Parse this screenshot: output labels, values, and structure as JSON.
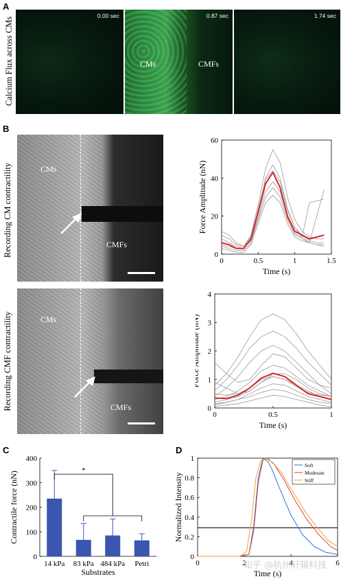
{
  "panels": {
    "A": {
      "letter": "A",
      "row_label": "Calcium Flux across CMs",
      "frames": [
        {
          "time": "0.00 sec",
          "labels": []
        },
        {
          "time": "0.87 sec",
          "labels": [
            "CMs",
            "CMFs"
          ]
        },
        {
          "time": "1.74 sec",
          "labels": []
        }
      ],
      "colors": {
        "background": "#05140b",
        "signal": "#3fbf5a"
      }
    },
    "B": {
      "letter": "B",
      "top_row_label": "Recording CM contractility",
      "bottom_row_label": "Recording CMF contractility",
      "top_image": {
        "left_label": "CMs",
        "right_label": "CMFs"
      },
      "bottom_image": {
        "left_label": "CMs",
        "right_label": "CMFs"
      }
    },
    "C": {
      "letter": "C",
      "significance": "*"
    },
    "D": {
      "letter": "D"
    }
  },
  "chart_data": [
    {
      "id": "B-top",
      "type": "line",
      "xlabel": "Time (s)",
      "ylabel": "Force Amplitude (nN)",
      "xlim": [
        0,
        1.5
      ],
      "ylim": [
        0,
        60
      ],
      "xticks": [
        "0",
        "0.5",
        "1",
        "1.5"
      ],
      "yticks": [
        "0",
        "20",
        "40",
        "60"
      ],
      "mean_color": "#d62728",
      "trace_color": "#999999",
      "mean": {
        "x": [
          0,
          0.1,
          0.2,
          0.3,
          0.4,
          0.5,
          0.6,
          0.7,
          0.8,
          0.9,
          1.0,
          1.1,
          1.2,
          1.3,
          1.4
        ],
        "y": [
          6,
          5,
          3,
          3,
          8,
          22,
          37,
          43,
          35,
          20,
          12,
          10,
          8,
          9,
          10
        ]
      },
      "traces": [
        {
          "x": [
            0,
            0.1,
            0.2,
            0.3,
            0.4,
            0.5,
            0.6,
            0.7,
            0.8,
            0.9,
            1.0,
            1.1,
            1.2,
            1.3,
            1.4
          ],
          "y": [
            10,
            8,
            5,
            4,
            10,
            26,
            45,
            55,
            48,
            30,
            18,
            12,
            9,
            8,
            8
          ]
        },
        {
          "x": [
            0,
            0.1,
            0.2,
            0.3,
            0.4,
            0.5,
            0.6,
            0.7,
            0.8,
            0.9,
            1.0,
            1.1,
            1.2,
            1.3,
            1.4
          ],
          "y": [
            4,
            3,
            2,
            2,
            6,
            18,
            30,
            35,
            30,
            18,
            10,
            9,
            27,
            28,
            29
          ]
        },
        {
          "x": [
            0,
            0.1,
            0.2,
            0.3,
            0.4,
            0.5,
            0.6,
            0.7,
            0.8,
            0.9,
            1.0,
            1.1,
            1.2,
            1.3,
            1.4
          ],
          "y": [
            8,
            6,
            4,
            3,
            8,
            22,
            40,
            47,
            40,
            24,
            14,
            9,
            6,
            5,
            5
          ]
        },
        {
          "x": [
            0,
            0.1,
            0.2,
            0.3,
            0.4,
            0.5,
            0.6,
            0.7,
            0.8,
            0.9,
            1.0,
            1.1,
            1.2,
            1.3,
            1.4
          ],
          "y": [
            3,
            2,
            1,
            1,
            5,
            16,
            27,
            31,
            27,
            16,
            9,
            7,
            6,
            20,
            34
          ]
        },
        {
          "x": [
            0,
            0.1,
            0.2,
            0.3,
            0.4,
            0.5,
            0.6,
            0.7,
            0.8,
            0.9,
            1.0,
            1.1,
            1.2,
            1.3,
            1.4
          ],
          "y": [
            12,
            10,
            6,
            4,
            9,
            24,
            39,
            44,
            38,
            23,
            14,
            10,
            7,
            6,
            6
          ]
        },
        {
          "x": [
            0,
            0.1,
            0.2,
            0.3,
            0.4,
            0.5,
            0.6,
            0.7,
            0.8,
            0.9,
            1.0,
            1.1,
            1.2,
            1.3,
            1.4
          ],
          "y": [
            5,
            4,
            3,
            3,
            7,
            19,
            33,
            38,
            33,
            19,
            11,
            8,
            6,
            5,
            4
          ]
        }
      ]
    },
    {
      "id": "B-bottom",
      "type": "line",
      "xlabel": "Time (s)",
      "ylabel": "Force Amplitude (nN)",
      "xlim": [
        0,
        1
      ],
      "ylim": [
        0,
        4
      ],
      "xticks": [
        "0",
        "0.5",
        "1"
      ],
      "yticks": [
        "0",
        "1",
        "2",
        "3",
        "4"
      ],
      "mean_color": "#d62728",
      "trace_color": "#999999",
      "mean": {
        "x": [
          0,
          0.1,
          0.2,
          0.3,
          0.4,
          0.5,
          0.6,
          0.7,
          0.8,
          0.9,
          1.0
        ],
        "y": [
          0.35,
          0.33,
          0.45,
          0.7,
          1.05,
          1.22,
          1.1,
          0.8,
          0.5,
          0.4,
          0.3
        ]
      },
      "traces": [
        {
          "x": [
            0,
            0.1,
            0.2,
            0.3,
            0.4,
            0.5,
            0.6,
            0.7,
            0.8,
            0.9,
            1.0
          ],
          "y": [
            0.8,
            1.2,
            1.8,
            2.5,
            3.1,
            3.3,
            3.1,
            2.6,
            2.0,
            1.5,
            1.0
          ]
        },
        {
          "x": [
            0,
            0.1,
            0.2,
            0.3,
            0.4,
            0.5,
            0.6,
            0.7,
            0.8,
            0.9,
            1.0
          ],
          "y": [
            0.6,
            1.0,
            1.5,
            2.1,
            2.5,
            2.7,
            2.5,
            2.1,
            1.6,
            1.2,
            0.8
          ]
        },
        {
          "x": [
            0,
            0.1,
            0.2,
            0.3,
            0.4,
            0.5,
            0.6,
            0.7,
            0.8,
            0.9,
            1.0
          ],
          "y": [
            0.4,
            0.7,
            1.1,
            1.6,
            2.0,
            2.2,
            2.0,
            1.6,
            1.2,
            0.8,
            0.5
          ]
        },
        {
          "x": [
            0,
            0.1,
            0.2,
            0.3,
            0.4,
            0.5,
            0.6,
            0.7,
            0.8,
            0.9,
            1.0
          ],
          "y": [
            1.6,
            1.2,
            0.9,
            1.0,
            1.5,
            1.9,
            1.8,
            1.4,
            1.0,
            0.8,
            0.7
          ]
        },
        {
          "x": [
            0,
            0.1,
            0.2,
            0.3,
            0.4,
            0.5,
            0.6,
            0.7,
            0.8,
            0.9,
            1.0
          ],
          "y": [
            0.3,
            0.4,
            0.6,
            0.9,
            1.3,
            1.5,
            1.4,
            1.1,
            0.8,
            0.6,
            0.4
          ]
        },
        {
          "x": [
            0,
            0.1,
            0.2,
            0.3,
            0.4,
            0.5,
            0.6,
            0.7,
            0.8,
            0.9,
            1.0
          ],
          "y": [
            0.2,
            0.3,
            0.4,
            0.6,
            0.9,
            1.1,
            1.0,
            0.8,
            0.6,
            0.4,
            0.3
          ]
        },
        {
          "x": [
            0,
            0.1,
            0.2,
            0.3,
            0.4,
            0.5,
            0.6,
            0.7,
            0.8,
            0.9,
            1.0
          ],
          "y": [
            0.1,
            0.2,
            0.3,
            0.5,
            0.7,
            0.85,
            0.8,
            0.6,
            0.4,
            0.3,
            0.2
          ]
        },
        {
          "x": [
            0,
            0.1,
            0.2,
            0.3,
            0.4,
            0.5,
            0.6,
            0.7,
            0.8,
            0.9,
            1.0
          ],
          "y": [
            0.15,
            0.2,
            0.3,
            0.4,
            0.55,
            0.65,
            0.6,
            0.45,
            0.3,
            0.2,
            0.15
          ]
        },
        {
          "x": [
            0,
            0.1,
            0.2,
            0.3,
            0.4,
            0.5,
            0.6,
            0.7,
            0.8,
            0.9,
            1.0
          ],
          "y": [
            0.05,
            0.1,
            0.15,
            0.25,
            0.35,
            0.45,
            0.4,
            0.3,
            0.2,
            0.1,
            0.05
          ]
        },
        {
          "x": [
            0,
            0.1,
            0.2,
            0.3,
            0.4,
            0.5,
            0.6,
            0.7,
            0.8,
            0.9,
            1.0
          ],
          "y": [
            0.9,
            0.7,
            0.5,
            0.6,
            0.9,
            1.2,
            1.2,
            1.0,
            0.7,
            0.5,
            0.4
          ]
        },
        {
          "x": [
            0,
            0.1,
            0.2,
            0.3,
            0.4,
            0.5,
            0.6,
            0.7,
            0.8,
            0.9,
            1.0
          ],
          "y": [
            0.5,
            0.45,
            0.5,
            0.7,
            1.0,
            1.1,
            1.0,
            0.75,
            0.55,
            0.45,
            0.4
          ]
        }
      ]
    },
    {
      "id": "C",
      "type": "bar",
      "xlabel": "Substrates",
      "ylabel": "Contractile force (nN)",
      "categories": [
        "14 kPa",
        "83 kPa",
        "484 kPa",
        "Petri"
      ],
      "values": [
        235,
        67,
        85,
        65
      ],
      "errors": [
        115,
        67,
        67,
        27
      ],
      "ylim": [
        0,
        400
      ],
      "yticks": [
        "0",
        "100",
        "200",
        "300",
        "400"
      ],
      "bar_color": "#3a56b0"
    },
    {
      "id": "D",
      "type": "line",
      "xlabel": "Time (s)",
      "ylabel": "Normalized Intensity",
      "xlim": [
        0,
        6
      ],
      "ylim": [
        0,
        1
      ],
      "xticks": [
        "0",
        "2",
        "4",
        "6"
      ],
      "yticks": [
        "0",
        "0.2",
        "0.4",
        "0.6",
        "0.8",
        "1"
      ],
      "threshold": 0.29,
      "legend_position": "top-right",
      "series": [
        {
          "name": "Soft",
          "color": "#2a6fdb",
          "x": [
            0,
            1.0,
            1.8,
            2.2,
            2.4,
            2.6,
            2.8,
            3.0,
            3.2,
            3.5,
            4.0,
            4.5,
            5.0,
            5.5,
            6.0
          ],
          "y": [
            0,
            0,
            0,
            0.02,
            0.3,
            0.8,
            1.0,
            0.97,
            0.88,
            0.7,
            0.42,
            0.22,
            0.1,
            0.04,
            0.02
          ]
        },
        {
          "name": "Moderate",
          "color": "#d9463a",
          "x": [
            0,
            1.0,
            1.8,
            2.2,
            2.4,
            2.6,
            2.8,
            3.0,
            3.3,
            3.7,
            4.2,
            4.7,
            5.2,
            5.7,
            6.0
          ],
          "y": [
            0,
            0,
            0,
            0.02,
            0.25,
            0.75,
            0.98,
            1.0,
            0.93,
            0.78,
            0.56,
            0.37,
            0.22,
            0.1,
            0.06
          ]
        },
        {
          "name": "Stiff",
          "color": "#f0a030",
          "x": [
            0,
            1.0,
            1.8,
            2.1,
            2.3,
            2.5,
            2.7,
            2.9,
            3.2,
            3.6,
            4.1,
            4.6,
            5.1,
            5.6,
            6.0
          ],
          "y": [
            0,
            0,
            0,
            0.05,
            0.35,
            0.8,
            0.97,
            1.0,
            0.96,
            0.85,
            0.65,
            0.46,
            0.3,
            0.16,
            0.1
          ]
        }
      ]
    }
  ],
  "watermark": "知乎 @杭州轩辕科技"
}
